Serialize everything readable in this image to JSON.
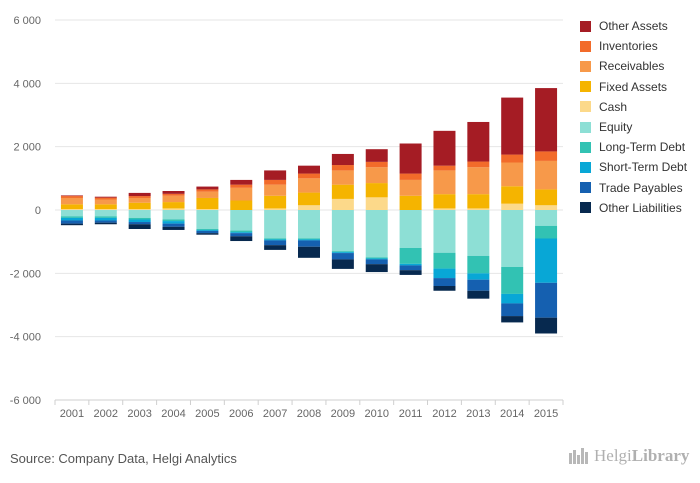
{
  "chart_data": {
    "type": "bar",
    "stacked": true,
    "categories": [
      "2001",
      "2002",
      "2003",
      "2004",
      "2005",
      "2006",
      "2007",
      "2008",
      "2009",
      "2010",
      "2011",
      "2012",
      "2013",
      "2014",
      "2015"
    ],
    "ylim": [
      -6000,
      6000
    ],
    "yticks": [
      6000,
      4000,
      2000,
      0,
      -2000,
      -4000,
      -6000
    ],
    "ytick_labels": [
      "6 000",
      "4 000",
      "2 000",
      "0",
      "-2 000",
      "-4 000",
      "-6 000"
    ],
    "grid": true,
    "legend_position": "right",
    "assets": [
      {
        "name": "Other Assets",
        "color": "#a51c24",
        "values": [
          20,
          30,
          100,
          90,
          90,
          150,
          300,
          250,
          350,
          400,
          950,
          1100,
          1250,
          1800,
          2000
        ]
      },
      {
        "name": "Inventories",
        "color": "#f26b2a",
        "values": [
          60,
          60,
          60,
          60,
          70,
          100,
          150,
          150,
          170,
          170,
          200,
          150,
          180,
          250,
          300
        ]
      },
      {
        "name": "Receivables",
        "color": "#f7994a",
        "values": [
          200,
          150,
          150,
          200,
          200,
          400,
          350,
          450,
          450,
          500,
          500,
          750,
          850,
          750,
          900
        ]
      },
      {
        "name": "Fixed Assets",
        "color": "#f5b400",
        "values": [
          150,
          150,
          200,
          200,
          350,
          300,
          400,
          400,
          450,
          450,
          450,
          450,
          450,
          550,
          500
        ]
      },
      {
        "name": "Cash",
        "color": "#fcd98a",
        "values": [
          30,
          30,
          30,
          50,
          30,
          0,
          50,
          150,
          350,
          400,
          0,
          50,
          50,
          200,
          150
        ]
      }
    ],
    "liabilities": [
      {
        "name": "Equity",
        "color": "#8ddfd5",
        "values": [
          200,
          200,
          250,
          300,
          600,
          650,
          900,
          900,
          1300,
          1500,
          1200,
          1350,
          1450,
          1800,
          500
        ]
      },
      {
        "name": "Long-Term Debt",
        "color": "#32c2b3",
        "values": [
          50,
          50,
          50,
          50,
          30,
          50,
          30,
          30,
          30,
          30,
          500,
          500,
          550,
          850,
          400
        ]
      },
      {
        "name": "Short-Term Debt",
        "color": "#08a7d6",
        "values": [
          80,
          80,
          80,
          80,
          30,
          30,
          30,
          30,
          30,
          30,
          50,
          300,
          200,
          300,
          1400
        ]
      },
      {
        "name": "Trade Payables",
        "color": "#1560b0",
        "values": [
          100,
          70,
          70,
          100,
          70,
          100,
          150,
          200,
          200,
          150,
          150,
          250,
          350,
          400,
          1100
        ]
      },
      {
        "name": "Other Liabilities",
        "color": "#07294f",
        "values": [
          50,
          50,
          150,
          100,
          50,
          150,
          150,
          350,
          300,
          250,
          150,
          150,
          250,
          200,
          500
        ]
      }
    ],
    "legend": [
      "Other Assets",
      "Inventories",
      "Receivables",
      "Fixed Assets",
      "Cash",
      "Equity",
      "Long-Term Debt",
      "Short-Term Debt",
      "Trade Payables",
      "Other Liabilities"
    ]
  },
  "footer": {
    "source": "Source: Company Data, Helgi Analytics",
    "logo_part1": "Helgi",
    "logo_part2": "Library"
  }
}
